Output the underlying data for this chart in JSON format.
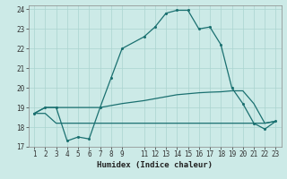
{
  "title": "",
  "xlabel": "Humidex (Indice chaleur)",
  "ylabel": "",
  "bg_color": "#cceae7",
  "grid_color": "#aad4d0",
  "line_color": "#1a7070",
  "xlim": [
    0.5,
    23.5
  ],
  "ylim": [
    17,
    24.2
  ],
  "xticks": [
    1,
    2,
    3,
    4,
    5,
    6,
    7,
    8,
    9,
    11,
    12,
    13,
    14,
    15,
    16,
    17,
    18,
    19,
    20,
    21,
    22,
    23
  ],
  "yticks": [
    17,
    18,
    19,
    20,
    21,
    22,
    23,
    24
  ],
  "line1_x": [
    1,
    2,
    3,
    4,
    5,
    6,
    7,
    8,
    9,
    11,
    12,
    13,
    14,
    15,
    16,
    17,
    18,
    19,
    20,
    21,
    22,
    23
  ],
  "line1_y": [
    18.7,
    19.0,
    19.0,
    17.3,
    17.5,
    17.4,
    19.0,
    20.5,
    22.0,
    22.6,
    23.1,
    23.8,
    23.95,
    23.95,
    23.0,
    23.1,
    22.2,
    20.0,
    19.2,
    18.2,
    17.9,
    18.3
  ],
  "line2_x": [
    1,
    2,
    3,
    4,
    5,
    6,
    7,
    8,
    9,
    11,
    12,
    13,
    14,
    15,
    16,
    17,
    18,
    19,
    20,
    21,
    22,
    23
  ],
  "line2_y": [
    18.7,
    19.0,
    19.0,
    19.0,
    19.0,
    19.0,
    19.0,
    19.1,
    19.2,
    19.35,
    19.45,
    19.55,
    19.65,
    19.7,
    19.75,
    19.78,
    19.8,
    19.85,
    19.85,
    19.2,
    18.2,
    18.3
  ],
  "line3_x": [
    1,
    2,
    3,
    4,
    5,
    6,
    7,
    8,
    9,
    11,
    12,
    13,
    14,
    15,
    16,
    17,
    18,
    19,
    20,
    21,
    22,
    23
  ],
  "line3_y": [
    18.7,
    18.7,
    18.2,
    18.2,
    18.2,
    18.2,
    18.2,
    18.2,
    18.2,
    18.2,
    18.2,
    18.2,
    18.2,
    18.2,
    18.2,
    18.2,
    18.2,
    18.2,
    18.2,
    18.2,
    18.2,
    18.3
  ]
}
